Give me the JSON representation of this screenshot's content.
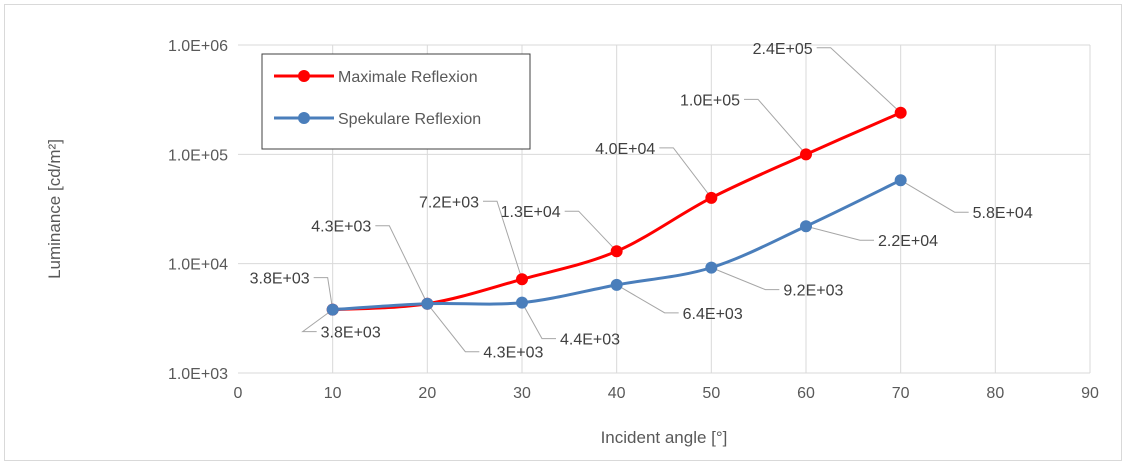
{
  "chart_data": {
    "type": "line",
    "xlabel": "Incident angle [°]",
    "ylabel": "Luminance [cd/m²]",
    "xlim": [
      0,
      90
    ],
    "ylim": [
      1000,
      1000000
    ],
    "y_scale": "log",
    "x_ticks": [
      "0",
      "10",
      "20",
      "30",
      "40",
      "50",
      "60",
      "70",
      "80",
      "90"
    ],
    "y_ticks": [
      "1.0E+03",
      "1.0E+04",
      "1.0E+05",
      "1.0E+06"
    ],
    "grid": true,
    "legend_position": "top-left",
    "series": [
      {
        "name": "Maximale Reflexion",
        "color": "#ff0000",
        "x": [
          10,
          20,
          30,
          40,
          50,
          60,
          70
        ],
        "y": [
          3800,
          4300,
          7200,
          13000,
          40000,
          100000,
          240000
        ],
        "labels": [
          "3.8E+03",
          "4.3E+03",
          "7.2E+03",
          "1.3E+04",
          "4.0E+04",
          "1.0E+05",
          "2.4E+05"
        ]
      },
      {
        "name": "Spekulare Reflexion",
        "color": "#4a7ebb",
        "x": [
          10,
          20,
          30,
          40,
          50,
          60,
          70
        ],
        "y": [
          3800,
          4300,
          4400,
          6400,
          9200,
          22000,
          58000
        ],
        "labels": [
          "3.8E+03",
          "4.3E+03",
          "4.4E+03",
          "6.4E+03",
          "9.2E+03",
          "2.2E+04",
          "5.8E+04"
        ]
      }
    ]
  }
}
